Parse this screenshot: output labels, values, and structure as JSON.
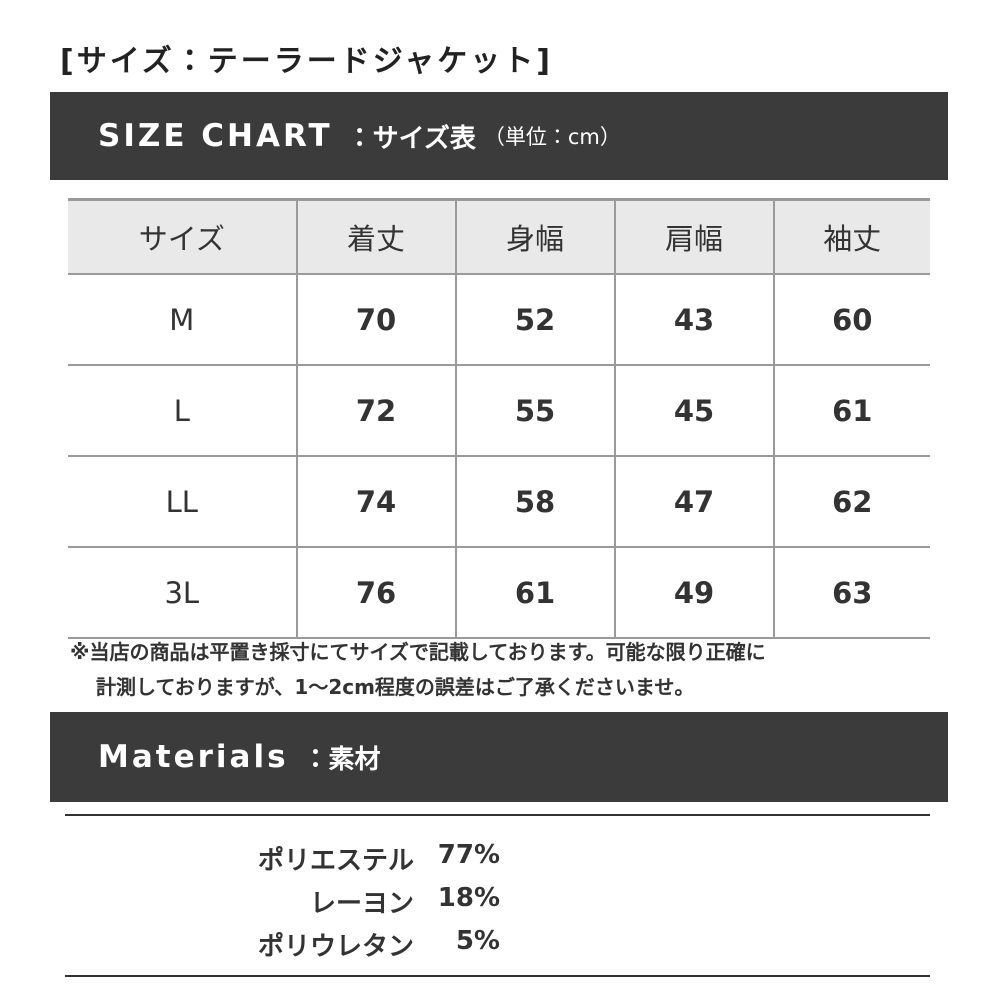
{
  "title": "[サイズ：テーラードジャケット]",
  "size_header": {
    "label": "SIZE CHART",
    "sub": "：サイズ表",
    "unit": "（単位：cm）"
  },
  "table": {
    "columns": [
      "サイズ",
      "着丈",
      "身幅",
      "肩幅",
      "袖丈"
    ],
    "rows": [
      [
        "M",
        70,
        52,
        43,
        60
      ],
      [
        "L",
        72,
        55,
        45,
        61
      ],
      [
        "LL",
        74,
        58,
        47,
        62
      ],
      [
        "3L",
        76,
        61,
        49,
        63
      ]
    ]
  },
  "note": [
    "※当店の商品は平置き採寸にてサイズで記載しております。可能な限り正確に",
    "計測しておりますが、1〜2cm程度の誤差はご了承くださいませ。"
  ],
  "materials_header": {
    "label": "Materials",
    "sub": "：素材"
  },
  "materials": [
    {
      "name": "ポリエステル",
      "percent": "77%"
    },
    {
      "name": "レーヨン",
      "percent": "18%"
    },
    {
      "name": "ポリウレタン",
      "percent": "5%"
    }
  ]
}
